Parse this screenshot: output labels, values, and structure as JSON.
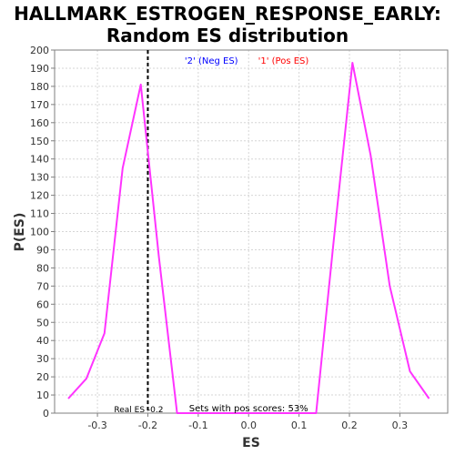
{
  "title_lines": [
    "HALLMARK_ESTROGEN_RESPONSE_EARLY:",
    "Random ES distribution"
  ],
  "chart_data": {
    "type": "line",
    "title": "HALLMARK_ESTROGEN_RESPONSE_EARLY: Random ES distribution",
    "xlabel": "ES",
    "ylabel": "P(ES)",
    "xlim": [
      -0.385,
      0.395
    ],
    "ylim": [
      0,
      200
    ],
    "xticks": [
      -0.3,
      -0.2,
      -0.1,
      0.0,
      0.1,
      0.2,
      0.3
    ],
    "xtick_labels": [
      "-0.3",
      "-0.2",
      "-0.1",
      "0.0",
      "0.1",
      "0.2",
      "0.3"
    ],
    "yticks": [
      0,
      10,
      20,
      30,
      40,
      50,
      60,
      70,
      80,
      90,
      100,
      110,
      120,
      130,
      140,
      150,
      160,
      170,
      180,
      190,
      200
    ],
    "grid": true,
    "series": [
      {
        "color": "#ff33ff",
        "x": [
          -0.358,
          -0.322,
          -0.286,
          -0.25,
          -0.214,
          -0.178,
          -0.142,
          -0.106,
          -0.07,
          -0.034,
          0.002,
          0.038,
          0.074,
          0.11,
          0.134,
          0.168,
          0.206,
          0.242,
          0.28,
          0.32,
          0.358
        ],
        "y": [
          8,
          19,
          44,
          135,
          181,
          86,
          0,
          0,
          0,
          0,
          0,
          0,
          0,
          0,
          0,
          93,
          193,
          142,
          70,
          23,
          8
        ]
      }
    ],
    "legend": [
      {
        "label": "'2' (Neg ES)",
        "color": "#0000ff",
        "x": -0.074
      },
      {
        "label": "'1' (Pos ES)",
        "color": "#ff0000",
        "x": 0.069
      }
    ],
    "real_es": {
      "value": -0.2,
      "label": "Real ES -0.2"
    },
    "annotation": "Sets with pos scores: 53%"
  }
}
